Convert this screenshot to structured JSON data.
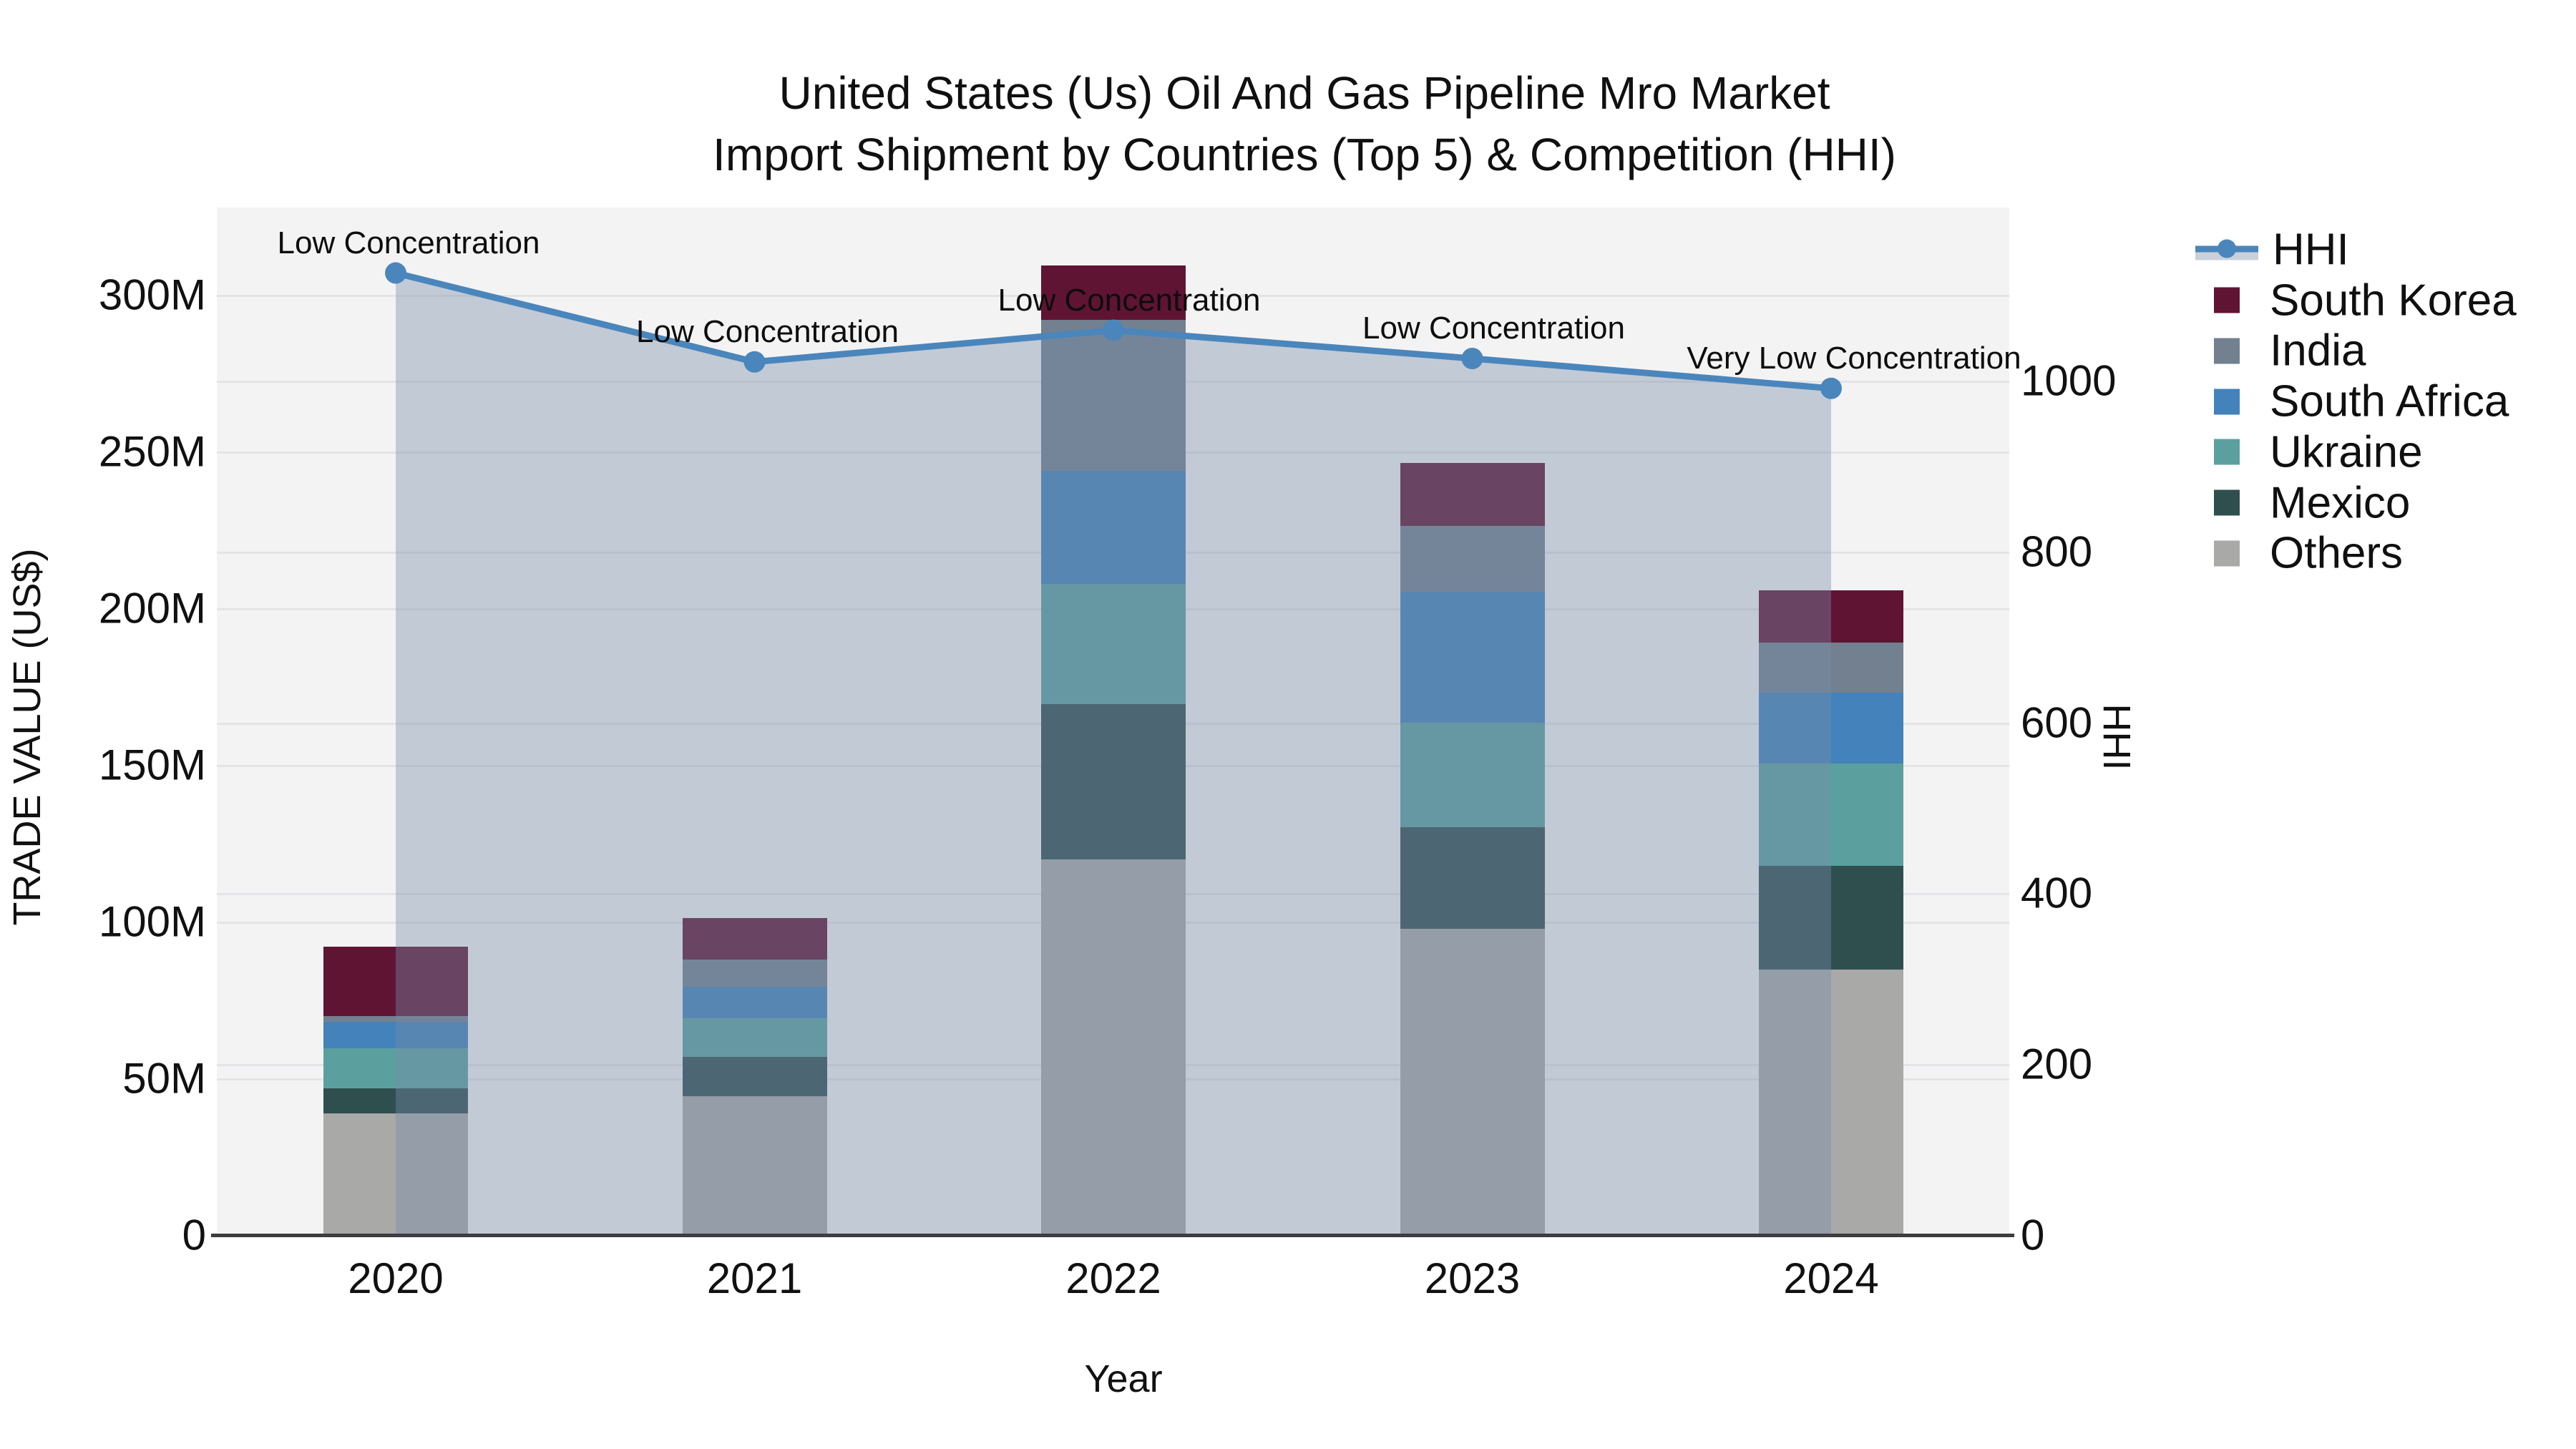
{
  "title": {
    "line1": "United States (Us) Oil And Gas Pipeline Mro Market",
    "line2": "Import Shipment by Countries (Top 5) & Competition (HHI)"
  },
  "axes": {
    "x": {
      "label": "Year",
      "ticks": [
        "2020",
        "2021",
        "2022",
        "2023",
        "2024"
      ]
    },
    "y_left": {
      "label": "TRADE VALUE (US$)",
      "ticks": [
        {
          "label": "0",
          "value": 0
        },
        {
          "label": "50M",
          "value": 50
        },
        {
          "label": "100M",
          "value": 100
        },
        {
          "label": "150M",
          "value": 150
        },
        {
          "label": "200M",
          "value": 200
        },
        {
          "label": "250M",
          "value": 250
        },
        {
          "label": "300M",
          "value": 300
        }
      ]
    },
    "y_right": {
      "label": "HHI",
      "ticks": [
        {
          "label": "0",
          "value": 0
        },
        {
          "label": "200",
          "value": 200
        },
        {
          "label": "400",
          "value": 400
        },
        {
          "label": "600",
          "value": 600
        },
        {
          "label": "800",
          "value": 800
        },
        {
          "label": "1000",
          "value": 1000
        }
      ]
    }
  },
  "legend": [
    {
      "label": "HHI",
      "type": "line",
      "color": "#4a86bb"
    },
    {
      "label": "South Korea",
      "type": "swatch",
      "color": "#5f1434"
    },
    {
      "label": "India",
      "type": "swatch",
      "color": "#72808f"
    },
    {
      "label": "South Africa",
      "type": "swatch",
      "color": "#4382ba"
    },
    {
      "label": "Ukraine",
      "type": "swatch",
      "color": "#5ba09e"
    },
    {
      "label": "Mexico",
      "type": "swatch",
      "color": "#2f4f4f"
    },
    {
      "label": "Others",
      "type": "swatch",
      "color": "#a9a9a7"
    }
  ],
  "chart_data": {
    "type": "bar+line",
    "title": "United States (Us) Oil And Gas Pipeline Mro Market Import Shipment by Countries (Top 5) & Competition (HHI)",
    "xlabel": "Year",
    "ylabel_left": "TRADE VALUE (US$)",
    "ylabel_right": "HHI",
    "categories": [
      "2020",
      "2021",
      "2022",
      "2023",
      "2024"
    ],
    "unit": "million US$",
    "stacked": true,
    "grid": true,
    "legend_position": "right",
    "ylim_left_M": [
      0,
      328
    ],
    "ylim_right": [
      0,
      1203
    ],
    "series": [
      {
        "name": "Others",
        "color": "#a9a9a7",
        "values": [
          38.8,
          44.3,
          119.9,
          97.7,
          84.7
        ]
      },
      {
        "name": "Mexico",
        "color": "#2f4f4f",
        "values": [
          8.0,
          12.6,
          49.5,
          32.4,
          33.1
        ]
      },
      {
        "name": "Ukraine",
        "color": "#5ba09e",
        "values": [
          12.8,
          12.3,
          38.4,
          33.4,
          32.7
        ]
      },
      {
        "name": "South Africa",
        "color": "#4382ba",
        "values": [
          8.4,
          10.0,
          36.0,
          41.8,
          22.6
        ]
      },
      {
        "name": "India",
        "color": "#72808f",
        "values": [
          1.9,
          8.7,
          48.2,
          21.0,
          15.9
        ]
      },
      {
        "name": "South Korea",
        "color": "#5f1434",
        "values": [
          22.1,
          13.2,
          17.4,
          20.0,
          16.7
        ]
      }
    ],
    "bar_totals_M": [
      92.0,
      101.1,
      309.4,
      246.3,
      205.7
    ],
    "line_series": {
      "name": "HHI",
      "color": "#4a86bb",
      "area_color": "rgba(119,140,169,0.40)",
      "values": [
        1126,
        1022,
        1059,
        1026,
        991
      ]
    },
    "annotations": [
      {
        "text": "Low Concentration",
        "dx": 18
      },
      {
        "text": "Low Concentration",
        "dx": 18
      },
      {
        "text": "Low Concentration",
        "dx": 22
      },
      {
        "text": "Low Concentration",
        "dx": 30
      },
      {
        "text": "Very Low Concentration",
        "dx": 32
      }
    ]
  }
}
